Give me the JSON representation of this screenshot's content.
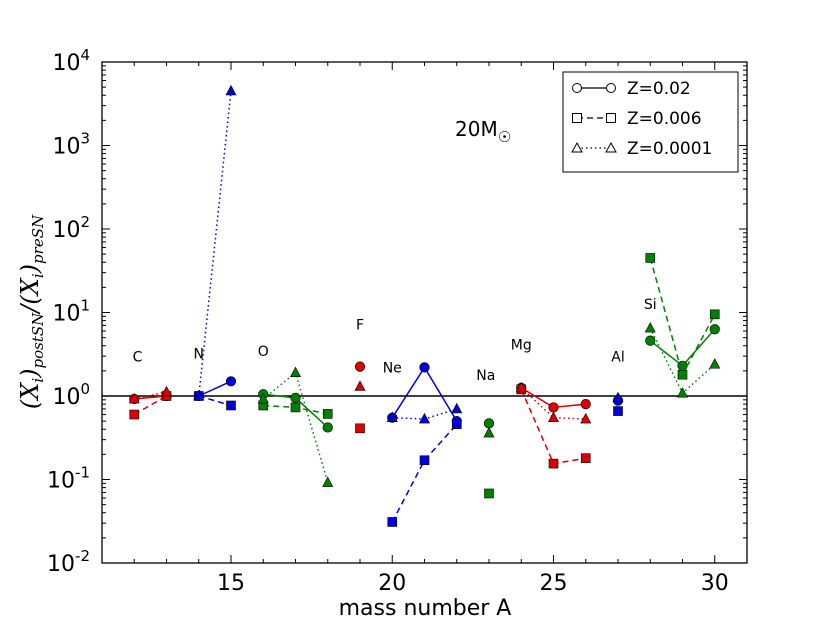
{
  "chart_data": {
    "type": "scatter",
    "title": "",
    "xlabel": "mass number A",
    "ylabel": "(X_i)postSN/(X_i)preSN",
    "ylabel_parts": {
      "open": "(",
      "var": "X",
      "sub1": "i",
      "mid1": ")",
      "sub2": "postSN",
      "slash": "/(",
      "var2": "X",
      "sub3": "i",
      "mid2": ")",
      "sub4": "preSN"
    },
    "xlim": [
      11,
      31
    ],
    "ylim_log10": [
      -2,
      4
    ],
    "yscale": "log",
    "x_ticks": [
      15,
      20,
      25,
      30
    ],
    "x_tick_labels": [
      "15",
      "20",
      "25",
      "30"
    ],
    "y_ticks": [
      {
        "base": "10",
        "exp": "-2"
      },
      {
        "base": "10",
        "exp": "-1"
      },
      {
        "base": "10",
        "exp": "0"
      },
      {
        "base": "10",
        "exp": "1"
      },
      {
        "base": "10",
        "exp": "2"
      },
      {
        "base": "10",
        "exp": "3"
      },
      {
        "base": "10",
        "exp": "4"
      }
    ],
    "reference_line_y": 1.0,
    "mass_label": {
      "text": "20M",
      "symbol": "☉"
    },
    "element_labels": [
      {
        "text": "C",
        "x": 12.1,
        "y": 2.6
      },
      {
        "text": "N",
        "x": 14.0,
        "y": 2.8
      },
      {
        "text": "O",
        "x": 16.0,
        "y": 3.0
      },
      {
        "text": "F",
        "x": 19.0,
        "y": 6.3
      },
      {
        "text": "Ne",
        "x": 20.0,
        "y": 1.9
      },
      {
        "text": "Na",
        "x": 22.9,
        "y": 1.55
      },
      {
        "text": "Mg",
        "x": 24.0,
        "y": 3.6
      },
      {
        "text": "Al",
        "x": 27.0,
        "y": 2.6
      },
      {
        "text": "Si",
        "x": 28.0,
        "y": 11.0
      }
    ],
    "legend": {
      "position": "top-right",
      "entries": [
        {
          "label": "Z=0.02",
          "marker": "circle",
          "line": "solid"
        },
        {
          "label": "Z=0.006",
          "marker": "square",
          "line": "dashed"
        },
        {
          "label": "Z=0.0001",
          "marker": "triangle",
          "line": "dotted"
        }
      ]
    },
    "series": [
      {
        "element": "C",
        "color": "#dd0000",
        "z002": [
          [
            12,
            0.92
          ],
          [
            13,
            1.0
          ]
        ],
        "z0006": [
          [
            12,
            0.6
          ],
          [
            13,
            1.0
          ]
        ],
        "z00001": [
          [
            12,
            0.92
          ],
          [
            13,
            1.12
          ]
        ]
      },
      {
        "element": "N",
        "color": "#0000dd",
        "z002": [
          [
            14,
            1.0
          ],
          [
            15,
            1.5
          ]
        ],
        "z0006": [
          [
            14,
            1.0
          ],
          [
            15,
            0.77
          ]
        ],
        "z00001": [
          [
            14,
            1.0
          ],
          [
            15,
            4500
          ]
        ]
      },
      {
        "element": "O",
        "color": "#008000",
        "z002": [
          [
            16,
            1.05
          ],
          [
            17,
            0.95
          ],
          [
            18,
            0.42
          ]
        ],
        "z0006": [
          [
            16,
            0.77
          ],
          [
            17,
            0.73
          ],
          [
            18,
            0.61
          ]
        ],
        "z00001": [
          [
            16,
            0.92
          ],
          [
            17,
            1.9
          ],
          [
            18,
            0.092
          ]
        ]
      },
      {
        "element": "F",
        "color": "#dd0000",
        "z002": [
          [
            19,
            2.25
          ]
        ],
        "z0006": [
          [
            19,
            0.41
          ]
        ],
        "z00001": [
          [
            19,
            1.3
          ]
        ]
      },
      {
        "element": "Ne",
        "color": "#0000dd",
        "z002": [
          [
            20,
            0.55
          ],
          [
            21,
            2.2
          ],
          [
            22,
            0.5
          ]
        ],
        "z0006": [
          [
            20,
            0.031
          ],
          [
            21,
            0.17
          ],
          [
            22,
            0.46
          ]
        ],
        "z00001": [
          [
            20,
            0.55
          ],
          [
            21,
            0.53
          ],
          [
            22,
            0.7
          ]
        ]
      },
      {
        "element": "Na",
        "color": "#008000",
        "z002": [
          [
            23,
            0.47
          ]
        ],
        "z0006": [
          [
            23,
            0.068
          ]
        ],
        "z00001": [
          [
            23,
            0.36
          ]
        ]
      },
      {
        "element": "Mg",
        "color": "#dd0000",
        "z002": [
          [
            24,
            1.25
          ],
          [
            25,
            0.73
          ],
          [
            26,
            0.8
          ]
        ],
        "z0006": [
          [
            24,
            1.2
          ],
          [
            25,
            0.155
          ],
          [
            26,
            0.18
          ]
        ],
        "z00001": [
          [
            24,
            1.25
          ],
          [
            25,
            0.55
          ],
          [
            26,
            0.53
          ]
        ]
      },
      {
        "element": "Al",
        "color": "#0000dd",
        "z002": [
          [
            27,
            0.88
          ]
        ],
        "z0006": [
          [
            27,
            0.66
          ]
        ],
        "z00001": [
          [
            27,
            0.95
          ]
        ]
      },
      {
        "element": "Si",
        "color": "#008000",
        "z002": [
          [
            28,
            4.6
          ],
          [
            29,
            2.3
          ],
          [
            30,
            6.3
          ]
        ],
        "z0006": [
          [
            28,
            45
          ],
          [
            29,
            1.8
          ],
          [
            30,
            9.5
          ]
        ],
        "z00001": [
          [
            28,
            6.5
          ],
          [
            29,
            1.08
          ],
          [
            30,
            2.4
          ]
        ]
      }
    ]
  }
}
